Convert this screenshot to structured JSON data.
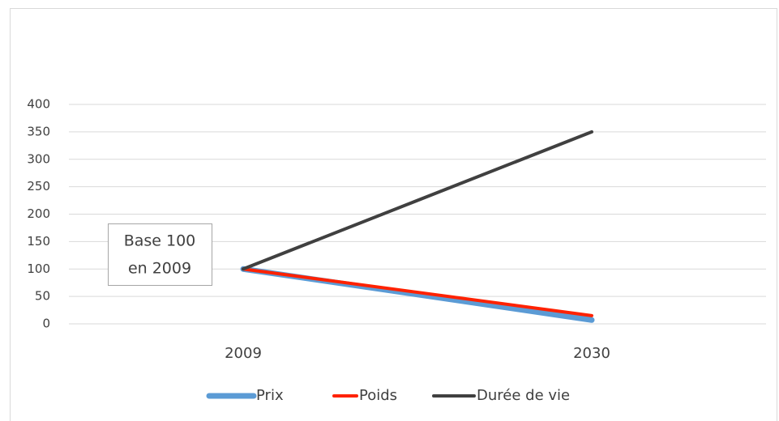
{
  "chart_data": {
    "type": "line",
    "categories": [
      "2009",
      "2030"
    ],
    "series": [
      {
        "name": "Prix",
        "color": "#5b9bd5",
        "values": [
          100,
          7
        ]
      },
      {
        "name": "Poids",
        "color": "#ff2200",
        "values": [
          100,
          15
        ]
      },
      {
        "name": "Durée de vie",
        "color": "#404040",
        "values": [
          100,
          350
        ]
      }
    ],
    "ylim": [
      0,
      400
    ],
    "yticks": [
      0,
      50,
      100,
      150,
      200,
      250,
      300,
      350,
      400
    ],
    "grid": true,
    "legend": "bottom",
    "annotation": [
      "Base 100",
      "en 2009"
    ]
  }
}
